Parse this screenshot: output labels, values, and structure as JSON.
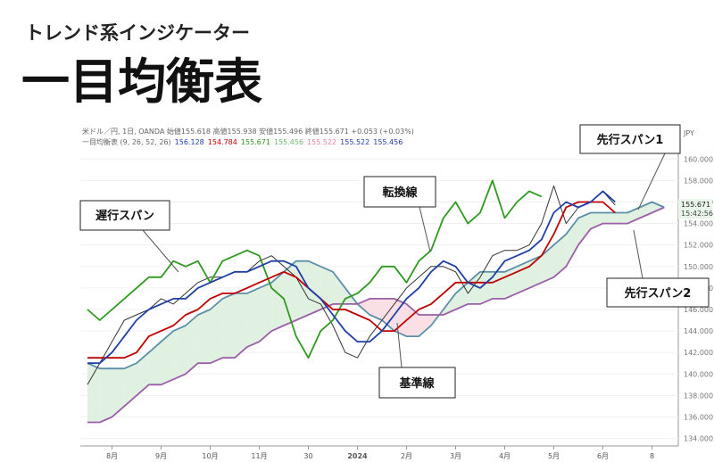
{
  "chart_data": {
    "type": "line",
    "subtitle": "トレンド系インジケーター",
    "title": "一目均衡表",
    "info_line": "米ドル／円, 1日, OANDA 始値155.618 高値155.938 安値155.496 終値155.671 +0.053 (+0.03%)",
    "indicator_line": [
      {
        "text": "一目均衡表 (9, 26, 52, 26)",
        "color": "#666666"
      },
      {
        "text": "156.128",
        "color": "#1f3fa6"
      },
      {
        "text": "154.784",
        "color": "#c00000"
      },
      {
        "text": "155.671",
        "color": "#2e9a1f"
      },
      {
        "text": "155.456",
        "color": "#6fb86f"
      },
      {
        "text": "155.522",
        "color": "#e0829a"
      },
      {
        "text": "155.522",
        "color": "#1f3fa6"
      },
      {
        "text": "155.456",
        "color": "#1f3fa6"
      }
    ],
    "currency": "JPY",
    "last_price_label": "155.671",
    "countdown": "15:42:56",
    "categories": [
      null,
      null,
      "8月",
      null,
      null,
      null,
      "9月",
      null,
      null,
      null,
      "10月",
      null,
      null,
      null,
      "11月",
      null,
      null,
      null,
      "30",
      null,
      null,
      null,
      "2024",
      null,
      null,
      null,
      "2月",
      null,
      null,
      null,
      "3月",
      null,
      null,
      null,
      "4月",
      null,
      null,
      null,
      "5月",
      null,
      null,
      null,
      "6月",
      null,
      null,
      null,
      "8",
      null
    ],
    "series": [
      {
        "color": "#333333",
        "values": [
          139,
          141,
          143,
          145,
          145.5,
          146,
          147,
          146.5,
          147.5,
          148.5,
          149,
          149,
          149.5,
          149.5,
          150.5,
          151,
          150,
          149,
          147,
          146.5,
          144.5,
          142,
          141.5,
          143.5,
          145,
          146.5,
          148,
          149,
          150,
          150,
          149.5,
          147.5,
          149,
          151,
          151.5,
          151.5,
          152,
          154,
          157.5,
          154,
          155.5,
          156,
          157,
          155.7,
          null,
          null,
          null,
          null
        ]
      },
      {
        "name": "転換線",
        "color": "#1f3fa6",
        "values": [
          141,
          141,
          142,
          143.5,
          145,
          146,
          146.5,
          147,
          147,
          148,
          148.5,
          149,
          149.5,
          149.5,
          150,
          150.5,
          150.5,
          150,
          148,
          147,
          145.5,
          144,
          143,
          143,
          144,
          145.5,
          147,
          148,
          149.5,
          150.5,
          150,
          148.5,
          148,
          149,
          150.5,
          151,
          151.5,
          152.5,
          155,
          156,
          155.5,
          156,
          157,
          156,
          null,
          null,
          null,
          null
        ]
      },
      {
        "name": "基準線",
        "color": "#c00000",
        "values": [
          141.5,
          141.5,
          141.5,
          141.5,
          142,
          143.5,
          144,
          144.5,
          145.5,
          146,
          147,
          147.5,
          147.5,
          148,
          148.5,
          149,
          149.5,
          149,
          148,
          147,
          146,
          146,
          145.5,
          145,
          144,
          144,
          145,
          146,
          146.5,
          147.5,
          148.5,
          148.5,
          148.5,
          148.5,
          149,
          149.5,
          150,
          151,
          153,
          155.5,
          156,
          156,
          156,
          155,
          null,
          null,
          null,
          null
        ]
      },
      {
        "name": "遅行スパン",
        "color": "#2e9a1f",
        "values": [
          146,
          145,
          146,
          147,
          148,
          149,
          149,
          150.5,
          150,
          150.5,
          148.5,
          150.5,
          151,
          151.5,
          151,
          148,
          147,
          143.5,
          141.5,
          144,
          145,
          147,
          147.5,
          148.5,
          150,
          150,
          148.5,
          150.5,
          151.5,
          154.5,
          156,
          154,
          155,
          158,
          154.5,
          156,
          157,
          156.5,
          null,
          null,
          null,
          null,
          null,
          null,
          null,
          null,
          null,
          null
        ]
      },
      {
        "name": "先行スパン1",
        "color": "#5d8fa8",
        "values": [
          141,
          140.5,
          140.5,
          140.5,
          141,
          142,
          143,
          144,
          144.5,
          145.5,
          146,
          147,
          147.5,
          147.5,
          148,
          148.5,
          149.5,
          150.5,
          150.5,
          150,
          149.5,
          148,
          146.5,
          145.5,
          145,
          144,
          143.5,
          143.5,
          144.5,
          146,
          147.5,
          148.5,
          149.5,
          149.5,
          149.5,
          150,
          150.5,
          151,
          152,
          153,
          154.5,
          155,
          155,
          155,
          155,
          155.5,
          156,
          155.5
        ]
      },
      {
        "name": "先行スパン2",
        "color": "#9b5fa8",
        "values": [
          135.5,
          135.5,
          136,
          137,
          138,
          139,
          139,
          139.5,
          140,
          141,
          141,
          141.5,
          141.5,
          142.5,
          143,
          144,
          144.5,
          145,
          145.5,
          146,
          146.5,
          146.5,
          146.5,
          147,
          147,
          147,
          146.5,
          145.5,
          145.5,
          145.5,
          146,
          146.5,
          146.5,
          147,
          147,
          147.5,
          148,
          148.5,
          149,
          150,
          152,
          153.5,
          154,
          154,
          154,
          154.5,
          155,
          155.5
        ]
      }
    ],
    "cloud_colors": [
      "#dcefdc",
      "#f9dbe1"
    ],
    "ylim": [
      133.3,
      161.1
    ],
    "yticks": [
      {
        "value": 134,
        "label": "134.000"
      },
      {
        "value": 136,
        "label": "136.000"
      },
      {
        "value": 138,
        "label": "138.000"
      },
      {
        "value": 140,
        "label": "140.000"
      },
      {
        "value": 142,
        "label": "142.000"
      },
      {
        "value": 144,
        "label": "144.000"
      },
      {
        "value": 146,
        "label": "146.000"
      },
      {
        "value": 148,
        "label": "148.000"
      },
      {
        "value": 150,
        "label": "150.000"
      },
      {
        "value": 152,
        "label": "152.000"
      },
      {
        "value": 154,
        "label": "154.000"
      },
      {
        "value": 156,
        "label": "156.000"
      },
      {
        "value": 158,
        "label": "158.000"
      },
      {
        "value": 160,
        "label": "160.000"
      }
    ]
  }
}
